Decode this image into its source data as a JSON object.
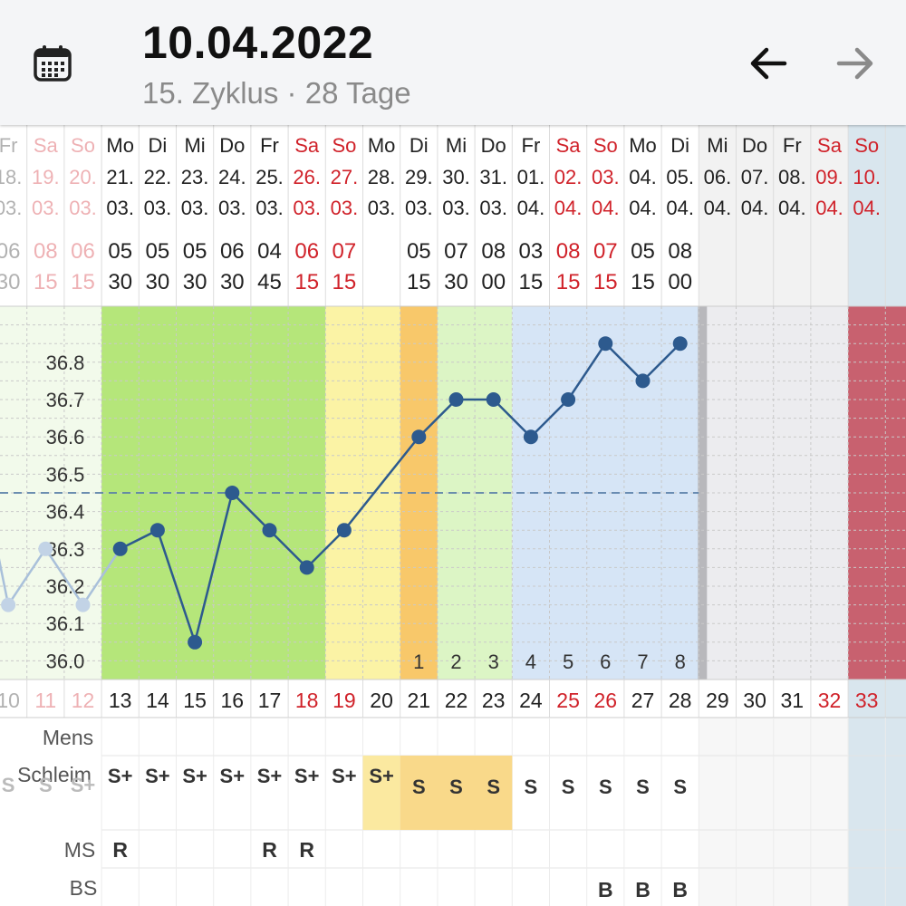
{
  "header": {
    "date": "10.04.2022",
    "subtitle": "15. Zyklus · 28 Tage",
    "calendar_icon": "calendar-icon",
    "prev_icon": "arrow-left-icon",
    "next_icon": "arrow-right-icon"
  },
  "colors": {
    "weekday": "#222222",
    "weekend": "#d0222a",
    "line": "#2d5a8e",
    "menstruation": "#c8616f",
    "fertile_green": "#b5e67a",
    "light_green": "#dcf5c5",
    "yellow": "#fbf3a5",
    "orange": "#f8c86a",
    "luteal_blue": "#d6e5f6"
  },
  "chart_data": {
    "type": "line",
    "title": "",
    "xlabel": "",
    "ylabel": "",
    "ylim": [
      35.95,
      36.95
    ],
    "y_ticks": [
      "36.0",
      "36.1",
      "36.2",
      "36.3",
      "36.4",
      "36.5",
      "36.6",
      "36.7",
      "36.8"
    ],
    "coverline": 36.45,
    "days": [
      {
        "wd": "Fr",
        "dd": "18.",
        "mm": "03.",
        "hh": "06",
        "mi": "30",
        "cd": "10",
        "temp": 36.15,
        "we": false,
        "cur": false,
        "schleim": "S",
        "ms": "",
        "bs": ""
      },
      {
        "wd": "Sa",
        "dd": "19.",
        "mm": "03.",
        "hh": "08",
        "mi": "15",
        "cd": "11",
        "temp": 36.3,
        "we": true,
        "cur": false,
        "schleim": "S",
        "ms": "",
        "bs": ""
      },
      {
        "wd": "So",
        "dd": "20.",
        "mm": "03.",
        "hh": "06",
        "mi": "15",
        "cd": "12",
        "temp": 36.15,
        "we": true,
        "cur": false,
        "schleim": "S+",
        "ms": "",
        "bs": ""
      },
      {
        "wd": "Mo",
        "dd": "21.",
        "mm": "03.",
        "hh": "05",
        "mi": "30",
        "cd": "13",
        "temp": 36.3,
        "we": false,
        "cur": true,
        "schleim": "S+",
        "ms": "R",
        "bs": ""
      },
      {
        "wd": "Di",
        "dd": "22.",
        "mm": "03.",
        "hh": "05",
        "mi": "30",
        "cd": "14",
        "temp": 36.35,
        "we": false,
        "cur": true,
        "schleim": "S+",
        "ms": "",
        "bs": ""
      },
      {
        "wd": "Mi",
        "dd": "23.",
        "mm": "03.",
        "hh": "05",
        "mi": "30",
        "cd": "15",
        "temp": 36.05,
        "we": false,
        "cur": true,
        "schleim": "S+",
        "ms": "",
        "bs": ""
      },
      {
        "wd": "Do",
        "dd": "24.",
        "mm": "03.",
        "hh": "06",
        "mi": "30",
        "cd": "16",
        "temp": 36.45,
        "we": false,
        "cur": true,
        "schleim": "S+",
        "ms": "",
        "bs": ""
      },
      {
        "wd": "Fr",
        "dd": "25.",
        "mm": "03.",
        "hh": "04",
        "mi": "45",
        "cd": "17",
        "temp": 36.35,
        "we": false,
        "cur": true,
        "schleim": "S+",
        "ms": "R",
        "bs": ""
      },
      {
        "wd": "Sa",
        "dd": "26.",
        "mm": "03.",
        "hh": "06",
        "mi": "15",
        "cd": "18",
        "temp": 36.25,
        "we": true,
        "cur": true,
        "schleim": "S+",
        "ms": "R",
        "bs": ""
      },
      {
        "wd": "So",
        "dd": "27.",
        "mm": "03.",
        "hh": "07",
        "mi": "15",
        "cd": "19",
        "temp": 36.35,
        "we": true,
        "cur": true,
        "schleim": "S+",
        "ms": "",
        "bs": ""
      },
      {
        "wd": "Mo",
        "dd": "28.",
        "mm": "03.",
        "hh": "",
        "mi": "",
        "cd": "20",
        "temp": null,
        "we": false,
        "cur": true,
        "schleim": "S+",
        "ms": "",
        "bs": ""
      },
      {
        "wd": "Di",
        "dd": "29.",
        "mm": "03.",
        "hh": "05",
        "mi": "15",
        "cd": "21",
        "temp": 36.6,
        "we": false,
        "cur": true,
        "schleim": "S",
        "ms": "",
        "bs": ""
      },
      {
        "wd": "Mi",
        "dd": "30.",
        "mm": "03.",
        "hh": "07",
        "mi": "30",
        "cd": "22",
        "temp": 36.7,
        "we": false,
        "cur": true,
        "schleim": "S",
        "ms": "",
        "bs": ""
      },
      {
        "wd": "Do",
        "dd": "31.",
        "mm": "03.",
        "hh": "08",
        "mi": "00",
        "cd": "23",
        "temp": 36.7,
        "we": false,
        "cur": true,
        "schleim": "S",
        "ms": "",
        "bs": ""
      },
      {
        "wd": "Fr",
        "dd": "01.",
        "mm": "04.",
        "hh": "03",
        "mi": "15",
        "cd": "24",
        "temp": 36.6,
        "we": false,
        "cur": true,
        "schleim": "S",
        "ms": "",
        "bs": ""
      },
      {
        "wd": "Sa",
        "dd": "02.",
        "mm": "04.",
        "hh": "08",
        "mi": "15",
        "cd": "25",
        "temp": 36.7,
        "we": true,
        "cur": true,
        "schleim": "S",
        "ms": "",
        "bs": ""
      },
      {
        "wd": "So",
        "dd": "03.",
        "mm": "04.",
        "hh": "07",
        "mi": "15",
        "cd": "26",
        "temp": 36.85,
        "we": true,
        "cur": true,
        "schleim": "S",
        "ms": "",
        "bs": "B"
      },
      {
        "wd": "Mo",
        "dd": "04.",
        "mm": "04.",
        "hh": "05",
        "mi": "15",
        "cd": "27",
        "temp": 36.75,
        "we": false,
        "cur": true,
        "schleim": "S",
        "ms": "",
        "bs": "B"
      },
      {
        "wd": "Di",
        "dd": "05.",
        "mm": "04.",
        "hh": "08",
        "mi": "00",
        "cd": "28",
        "temp": 36.85,
        "we": false,
        "cur": true,
        "schleim": "S",
        "ms": "",
        "bs": "B"
      },
      {
        "wd": "Mi",
        "dd": "06.",
        "mm": "04.",
        "hh": "",
        "mi": "",
        "cd": "29",
        "temp": null,
        "we": false,
        "cur": false,
        "schleim": "",
        "ms": "",
        "bs": ""
      },
      {
        "wd": "Do",
        "dd": "07.",
        "mm": "04.",
        "hh": "",
        "mi": "",
        "cd": "30",
        "temp": null,
        "we": false,
        "cur": false,
        "schleim": "",
        "ms": "",
        "bs": ""
      },
      {
        "wd": "Fr",
        "dd": "08.",
        "mm": "04.",
        "hh": "",
        "mi": "",
        "cd": "31",
        "temp": null,
        "we": false,
        "cur": false,
        "schleim": "",
        "ms": "",
        "bs": ""
      },
      {
        "wd": "Sa",
        "dd": "09.",
        "mm": "04.",
        "hh": "",
        "mi": "",
        "cd": "32",
        "temp": null,
        "we": true,
        "cur": false,
        "schleim": "",
        "ms": "",
        "bs": ""
      },
      {
        "wd": "So",
        "dd": "10.",
        "mm": "04.",
        "hh": "",
        "mi": "",
        "cd": "33",
        "temp": null,
        "we": true,
        "cur": false,
        "schleim": "",
        "ms": "",
        "bs": ""
      }
    ],
    "high_phase_labels": [
      {
        "day_index": 11,
        "label": "1"
      },
      {
        "day_index": 12,
        "label": "2"
      },
      {
        "day_index": 13,
        "label": "3"
      },
      {
        "day_index": 14,
        "label": "4"
      },
      {
        "day_index": 15,
        "label": "5"
      },
      {
        "day_index": 16,
        "label": "6"
      },
      {
        "day_index": 17,
        "label": "7"
      },
      {
        "day_index": 18,
        "label": "8"
      }
    ],
    "row_labels": {
      "mens": "Mens",
      "schleim": "Schleim",
      "ms": "MS",
      "bs": "BS"
    }
  }
}
